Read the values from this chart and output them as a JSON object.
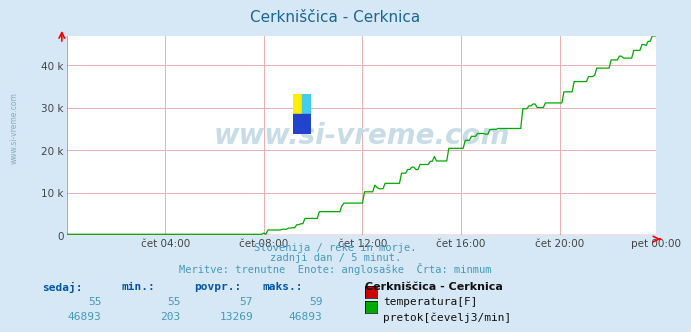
{
  "title": "Cerkniščica - Cerknica",
  "title_color": "#1a6699",
  "bg_color": "#d6e8f5",
  "plot_bg_color": "#ffffff",
  "grid_color_x": "#e8b0b0",
  "grid_color_y": "#e8b0b0",
  "xlabel_ticks": [
    "čet 04:00",
    "čet 08:00",
    "čet 12:00",
    "čet 16:00",
    "čet 20:00",
    "pet 00:00"
  ],
  "ylabel_ticks": [
    "0",
    "10 k",
    "20 k",
    "30 k",
    "40 k"
  ],
  "ylabel_values": [
    0,
    10000,
    20000,
    30000,
    40000
  ],
  "ylim_max": 46893,
  "temp_color": "#cc0000",
  "flow_color": "#00aa00",
  "watermark_text": "www.si-vreme.com",
  "watermark_color": "#c8dce8",
  "side_watermark_color": "#88aac0",
  "subtitle_line1": "Slovenija / reke in morje.",
  "subtitle_line2": "zadnji dan / 5 minut.",
  "subtitle_line3": "Meritve: trenutne  Enote: anglosaške  Črta: minmum",
  "subtitle_color": "#4499bb",
  "table_header": [
    "sedaj:",
    "min.:",
    "povpr.:",
    "maks.:"
  ],
  "table_header_color": "#0055aa",
  "temp_row": [
    "55",
    "55",
    "57",
    "59"
  ],
  "flow_row": [
    "46893",
    "203",
    "13269",
    "46893"
  ],
  "legend_title": "Cerkniščica - Cerknica",
  "legend_items": [
    "temperatura[F]",
    "pretok[čevelj3/min]"
  ],
  "legend_colors": [
    "#cc0000",
    "#00aa00"
  ],
  "n_points": 288,
  "logo_colors": [
    "#ffee00",
    "#44ccee",
    "#2244cc"
  ],
  "tick_color": "#444444"
}
